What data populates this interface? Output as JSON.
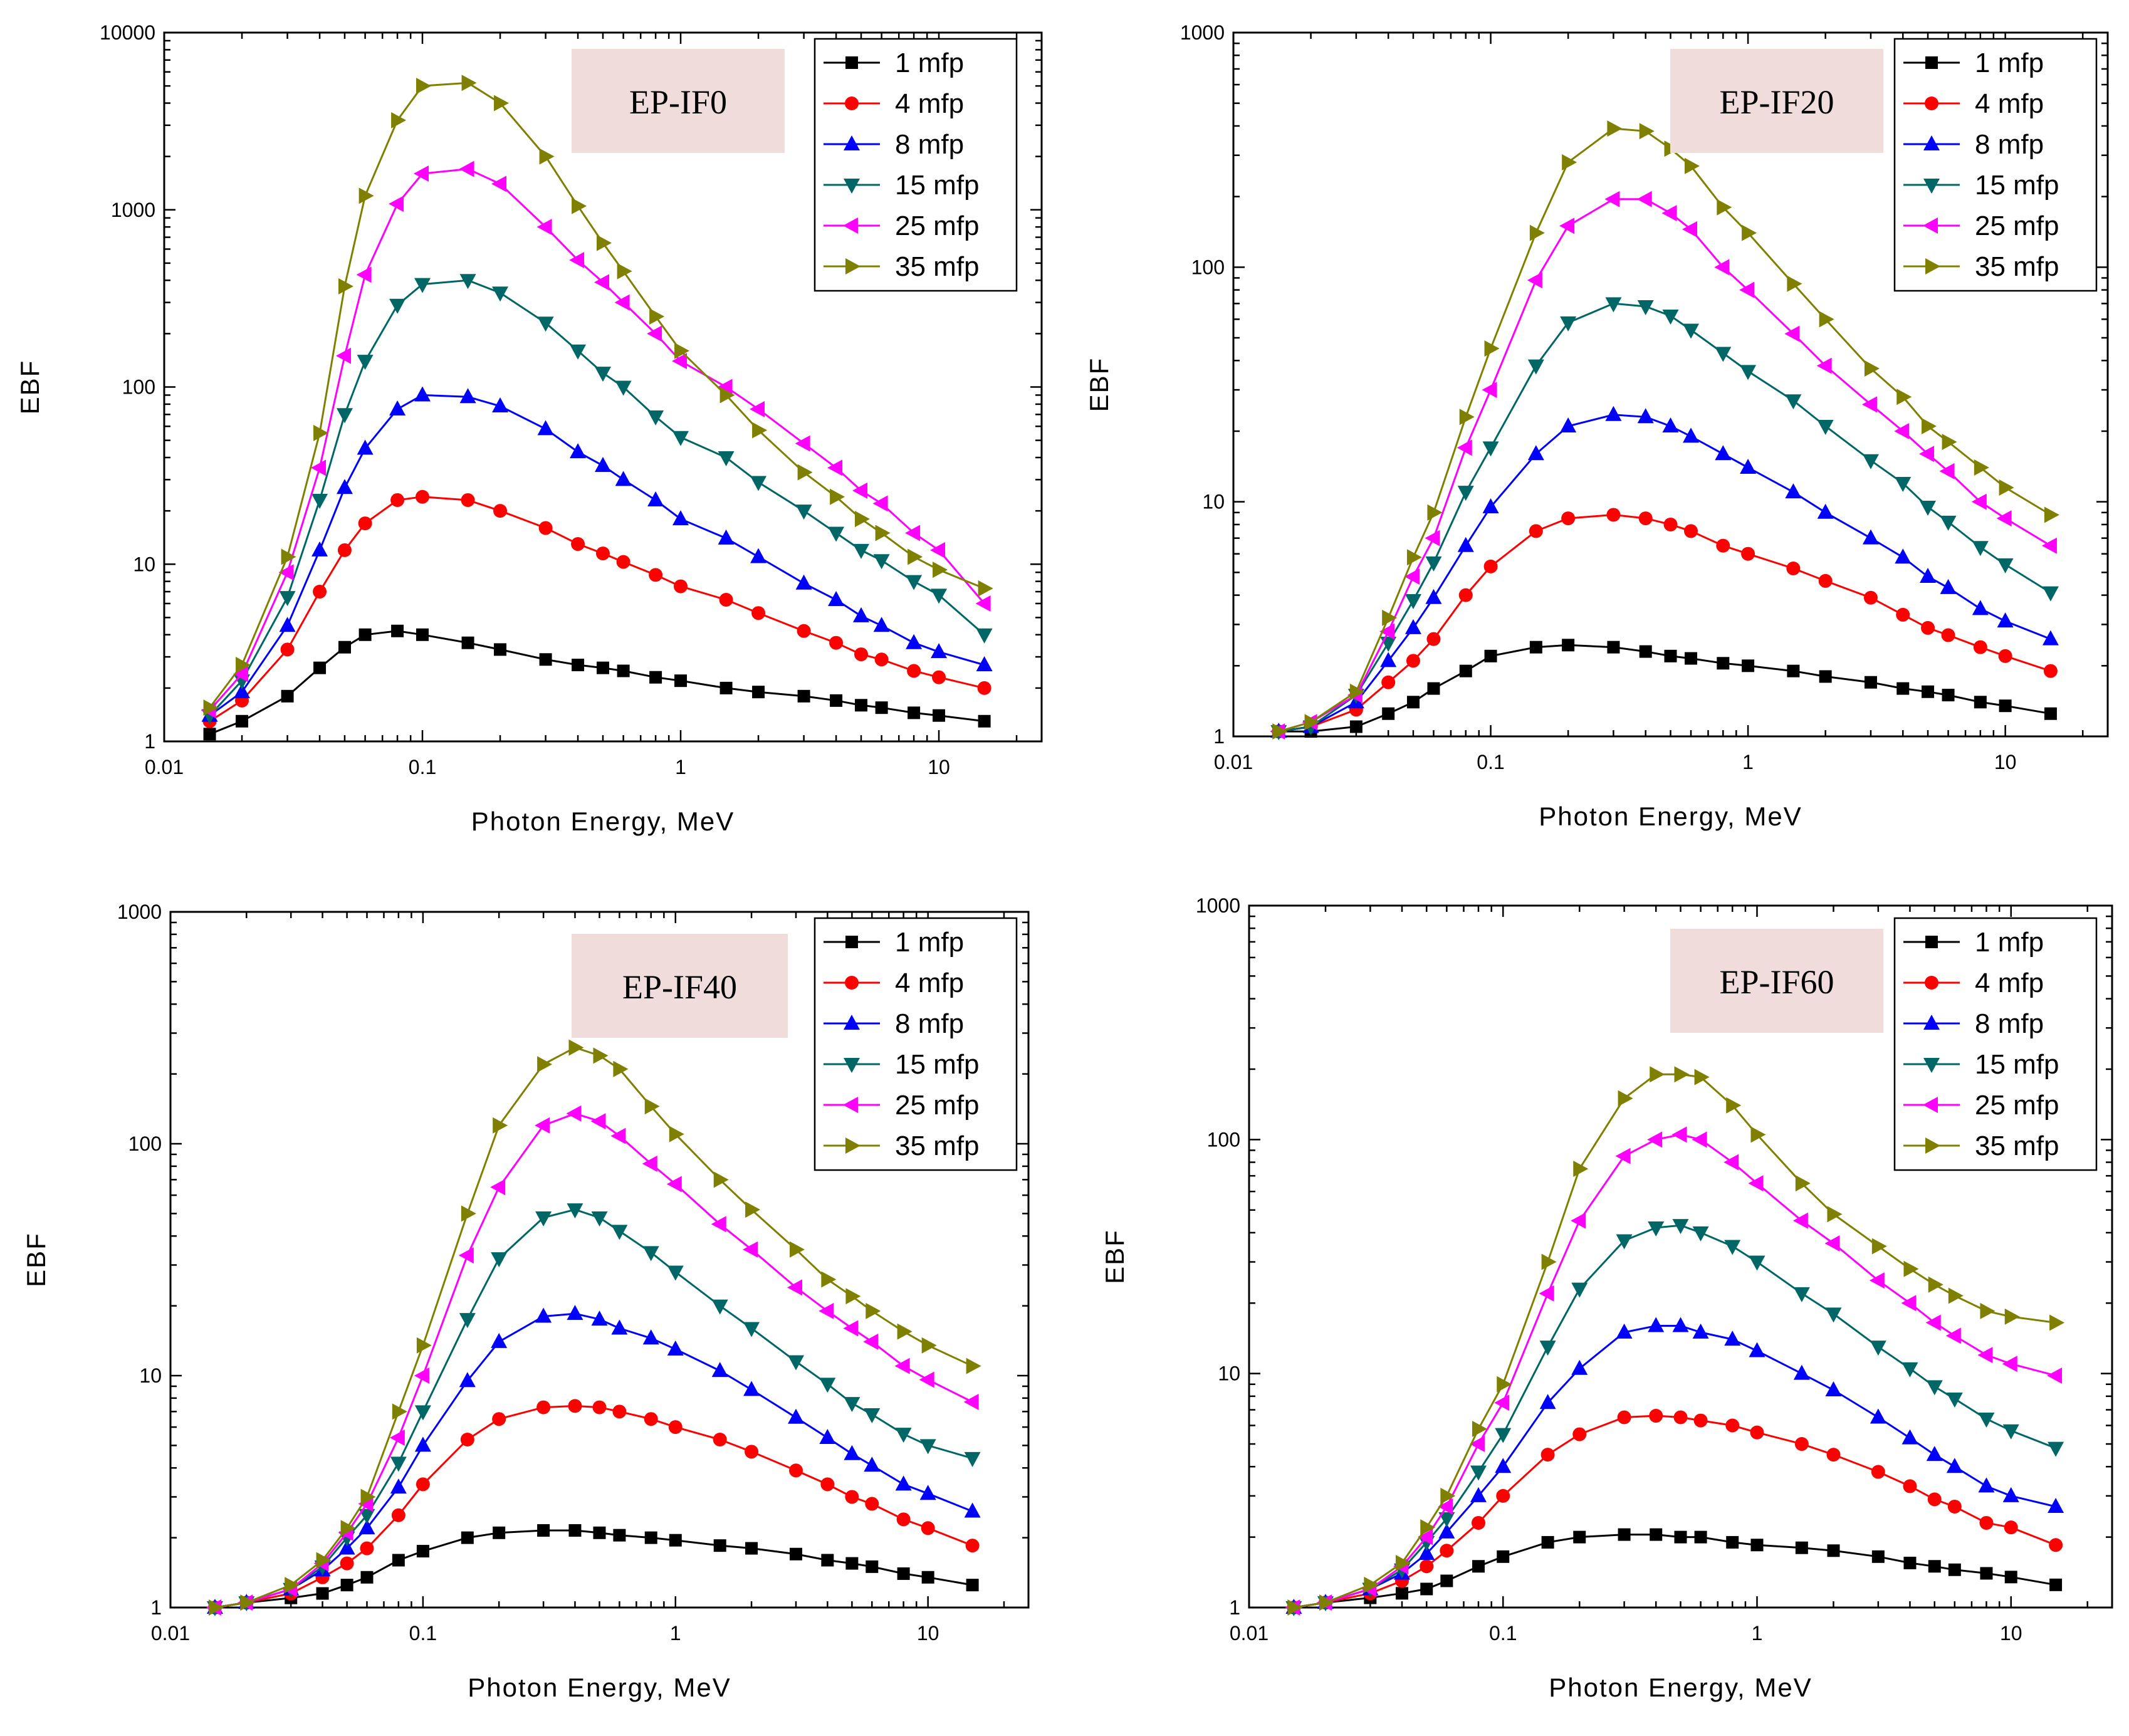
{
  "colors": {
    "series": [
      "#000000",
      "#ff0000",
      "#0000ff",
      "#006666",
      "#ff00ff",
      "#808000"
    ],
    "badge_bg": "#f1dcdc",
    "axis": "#000000"
  },
  "chart_data": [
    {
      "type": "line",
      "panel": "top-left",
      "title": "EP-IF0",
      "xlabel": "Photon Energy, MeV",
      "ylabel": "EBF",
      "xscale": "log",
      "yscale": "log",
      "xlim": [
        0.01,
        25
      ],
      "ylim": [
        1,
        10000
      ],
      "xticks": [
        "0.01",
        "0.1",
        "1",
        "10"
      ],
      "yticks": [
        "1",
        "10",
        "100",
        "1000",
        "10000"
      ],
      "legend_position": "top-right",
      "x": [
        0.015,
        0.02,
        0.03,
        0.04,
        0.05,
        0.06,
        0.08,
        0.1,
        0.15,
        0.2,
        0.3,
        0.4,
        0.5,
        0.6,
        0.8,
        1,
        1.5,
        2,
        3,
        4,
        5,
        6,
        8,
        10,
        15
      ],
      "series": [
        {
          "name": "1 mfp",
          "marker": "square",
          "values": [
            1.1,
            1.3,
            1.8,
            2.6,
            3.4,
            4.0,
            4.2,
            4.0,
            3.6,
            3.3,
            2.9,
            2.7,
            2.6,
            2.5,
            2.3,
            2.2,
            2.0,
            1.9,
            1.8,
            1.7,
            1.6,
            1.55,
            1.45,
            1.4,
            1.3
          ]
        },
        {
          "name": "4 mfp",
          "marker": "circle",
          "values": [
            1.3,
            1.7,
            3.3,
            7,
            12,
            17,
            23,
            24,
            23,
            20,
            16,
            13,
            11.5,
            10.3,
            8.7,
            7.5,
            6.3,
            5.3,
            4.2,
            3.6,
            3.1,
            2.9,
            2.5,
            2.3,
            2.0
          ]
        },
        {
          "name": "8 mfp",
          "marker": "triangle-up",
          "values": [
            1.4,
            1.9,
            4.5,
            12,
            27,
            45,
            75,
            90,
            88,
            78,
            58,
            43,
            36,
            30,
            23,
            18,
            14,
            11,
            7.8,
            6.3,
            5.1,
            4.5,
            3.6,
            3.2,
            2.7
          ]
        },
        {
          "name": "15 mfp",
          "marker": "triangle-down",
          "values": [
            1.4,
            2.2,
            6.5,
            23,
            70,
            140,
            290,
            380,
            400,
            340,
            230,
            160,
            120,
            100,
            68,
            52,
            40,
            29,
            20,
            15,
            12,
            10.5,
            8,
            6.7,
            4
          ]
        },
        {
          "name": "25 mfp",
          "marker": "triangle-left",
          "values": [
            1.5,
            2.4,
            9,
            35,
            150,
            430,
            1080,
            1600,
            1700,
            1400,
            800,
            520,
            390,
            300,
            200,
            140,
            100,
            75,
            48,
            35,
            26,
            22,
            15,
            12,
            6
          ]
        },
        {
          "name": "35 mfp",
          "marker": "triangle-right",
          "values": [
            1.55,
            2.7,
            11,
            55,
            370,
            1200,
            3200,
            5000,
            5200,
            4000,
            2000,
            1050,
            650,
            450,
            250,
            160,
            90,
            57,
            33,
            24,
            18,
            15,
            11,
            9.3,
            7.3
          ]
        }
      ]
    },
    {
      "type": "line",
      "panel": "top-right",
      "title": "EP-IF20",
      "xlabel": "Photon Energy, MeV",
      "ylabel": "EBF",
      "xscale": "log",
      "yscale": "log",
      "xlim": [
        0.01,
        25
      ],
      "ylim": [
        1,
        1000
      ],
      "xticks": [
        "0.01",
        "0.1",
        "1",
        "10"
      ],
      "yticks": [
        "1",
        "10",
        "100",
        "1000"
      ],
      "legend_position": "top-right",
      "x": [
        0.015,
        0.02,
        0.03,
        0.04,
        0.05,
        0.06,
        0.08,
        0.1,
        0.15,
        0.2,
        0.3,
        0.4,
        0.5,
        0.6,
        0.8,
        1,
        1.5,
        2,
        3,
        4,
        5,
        6,
        8,
        10,
        15
      ],
      "series": [
        {
          "name": "1 mfp",
          "marker": "square",
          "values": [
            1.05,
            1.05,
            1.1,
            1.25,
            1.4,
            1.6,
            1.9,
            2.2,
            2.4,
            2.45,
            2.4,
            2.3,
            2.2,
            2.15,
            2.05,
            2.0,
            1.9,
            1.8,
            1.7,
            1.6,
            1.55,
            1.5,
            1.4,
            1.35,
            1.25
          ]
        },
        {
          "name": "4 mfp",
          "marker": "circle",
          "values": [
            1.05,
            1.1,
            1.3,
            1.7,
            2.1,
            2.6,
            4.0,
            5.3,
            7.5,
            8.5,
            8.8,
            8.5,
            8.0,
            7.5,
            6.5,
            6.0,
            5.2,
            4.6,
            3.9,
            3.3,
            2.9,
            2.7,
            2.4,
            2.2,
            1.9
          ]
        },
        {
          "name": "8 mfp",
          "marker": "triangle-up",
          "values": [
            1.05,
            1.1,
            1.4,
            2.1,
            2.9,
            3.9,
            6.5,
            9.5,
            16,
            21,
            23.5,
            23,
            21,
            19,
            16,
            14,
            11,
            9,
            7,
            5.8,
            4.8,
            4.3,
            3.5,
            3.1,
            2.6
          ]
        },
        {
          "name": "15 mfp",
          "marker": "triangle-down",
          "values": [
            1.05,
            1.1,
            1.5,
            2.5,
            3.8,
            5.5,
            11,
            17,
            38,
            58,
            70,
            68,
            62,
            54,
            43,
            36,
            27,
            21,
            15,
            12,
            9.5,
            8.2,
            6.4,
            5.4,
            4.1
          ]
        },
        {
          "name": "25 mfp",
          "marker": "triangle-left",
          "values": [
            1.05,
            1.15,
            1.5,
            2.8,
            4.8,
            7,
            17,
            30,
            88,
            150,
            195,
            195,
            170,
            145,
            100,
            80,
            52,
            38,
            26,
            20,
            16,
            13.5,
            10,
            8.5,
            6.5
          ]
        },
        {
          "name": "35 mfp",
          "marker": "triangle-right",
          "values": [
            1.05,
            1.15,
            1.55,
            3.2,
            5.8,
            9,
            23,
            45,
            140,
            280,
            390,
            380,
            320,
            270,
            180,
            140,
            85,
            60,
            37,
            28,
            21,
            18,
            14,
            11.5,
            8.8
          ]
        }
      ]
    },
    {
      "type": "line",
      "panel": "bottom-left",
      "title": "EP-IF40",
      "xlabel": "Photon Energy, MeV",
      "ylabel": "EBF",
      "xscale": "log",
      "yscale": "log",
      "xlim": [
        0.01,
        25
      ],
      "ylim": [
        1,
        1000
      ],
      "xticks": [
        "0.01",
        "0.1",
        "1",
        "10"
      ],
      "yticks": [
        "1",
        "10",
        "100",
        "1000"
      ],
      "legend_position": "top-right",
      "x": [
        0.015,
        0.02,
        0.03,
        0.04,
        0.05,
        0.06,
        0.08,
        0.1,
        0.15,
        0.2,
        0.3,
        0.4,
        0.5,
        0.6,
        0.8,
        1,
        1.5,
        2,
        3,
        4,
        5,
        6,
        8,
        10,
        15
      ],
      "series": [
        {
          "name": "1 mfp",
          "marker": "square",
          "values": [
            1.0,
            1.05,
            1.1,
            1.15,
            1.25,
            1.35,
            1.6,
            1.75,
            2.0,
            2.1,
            2.15,
            2.15,
            2.1,
            2.05,
            2.0,
            1.95,
            1.85,
            1.8,
            1.7,
            1.6,
            1.55,
            1.5,
            1.4,
            1.35,
            1.25
          ]
        },
        {
          "name": "4 mfp",
          "marker": "circle",
          "values": [
            1.0,
            1.05,
            1.15,
            1.35,
            1.55,
            1.8,
            2.5,
            3.4,
            5.3,
            6.5,
            7.3,
            7.4,
            7.3,
            7.0,
            6.5,
            6.0,
            5.3,
            4.7,
            3.9,
            3.4,
            3.0,
            2.8,
            2.4,
            2.2,
            1.85
          ]
        },
        {
          "name": "8 mfp",
          "marker": "triangle-up",
          "values": [
            1.0,
            1.05,
            1.2,
            1.45,
            1.8,
            2.2,
            3.3,
            5.0,
            9.5,
            14,
            18,
            18.5,
            17.5,
            16,
            14.5,
            13,
            10.5,
            8.7,
            6.6,
            5.4,
            4.6,
            4.1,
            3.4,
            3.1,
            2.6
          ]
        },
        {
          "name": "15 mfp",
          "marker": "triangle-down",
          "values": [
            1.0,
            1.05,
            1.2,
            1.5,
            2.0,
            2.5,
            4.2,
            7,
            17.5,
            32,
            48,
            52,
            48,
            42,
            34,
            28,
            20,
            16,
            11.5,
            9.2,
            7.6,
            6.8,
            5.6,
            5.0,
            4.4
          ]
        },
        {
          "name": "25 mfp",
          "marker": "triangle-left",
          "values": [
            1.0,
            1.05,
            1.2,
            1.55,
            2.1,
            2.8,
            5.4,
            10,
            33,
            65,
            120,
            135,
            125,
            108,
            82,
            67,
            45,
            35,
            24,
            19,
            16,
            14,
            11,
            9.6,
            7.7
          ]
        },
        {
          "name": "35 mfp",
          "marker": "triangle-right",
          "values": [
            1.0,
            1.05,
            1.25,
            1.6,
            2.2,
            3.0,
            7,
            13.5,
            50,
            120,
            220,
            260,
            240,
            210,
            145,
            110,
            70,
            52,
            35,
            26,
            22,
            19,
            15.5,
            13.5,
            11
          ]
        }
      ]
    },
    {
      "type": "line",
      "panel": "bottom-right",
      "title": "EP-IF60",
      "xlabel": "Photon Energy, MeV",
      "ylabel": "EBF",
      "xscale": "log",
      "yscale": "log",
      "xlim": [
        0.01,
        25
      ],
      "ylim": [
        1,
        1000
      ],
      "xticks": [
        "0.01",
        "0.1",
        "1",
        "10"
      ],
      "yticks": [
        "1",
        "10",
        "100",
        "1000"
      ],
      "legend_position": "top-right",
      "x": [
        0.015,
        0.02,
        0.03,
        0.04,
        0.05,
        0.06,
        0.08,
        0.1,
        0.15,
        0.2,
        0.3,
        0.4,
        0.5,
        0.6,
        0.8,
        1,
        1.5,
        2,
        3,
        4,
        5,
        6,
        8,
        10,
        15
      ],
      "series": [
        {
          "name": "1 mfp",
          "marker": "square",
          "values": [
            1.0,
            1.05,
            1.1,
            1.15,
            1.2,
            1.3,
            1.5,
            1.65,
            1.9,
            2.0,
            2.05,
            2.05,
            2.0,
            2.0,
            1.9,
            1.85,
            1.8,
            1.75,
            1.65,
            1.55,
            1.5,
            1.45,
            1.4,
            1.35,
            1.25
          ]
        },
        {
          "name": "4 mfp",
          "marker": "circle",
          "values": [
            1.0,
            1.05,
            1.15,
            1.3,
            1.5,
            1.75,
            2.3,
            3.0,
            4.5,
            5.5,
            6.5,
            6.6,
            6.5,
            6.3,
            6.0,
            5.6,
            5.0,
            4.5,
            3.8,
            3.3,
            2.9,
            2.7,
            2.3,
            2.2,
            1.85
          ]
        },
        {
          "name": "8 mfp",
          "marker": "triangle-up",
          "values": [
            1.0,
            1.05,
            1.2,
            1.4,
            1.7,
            2.1,
            3.0,
            4.0,
            7.5,
            10.5,
            15,
            16,
            16,
            15,
            14,
            12.5,
            10,
            8.5,
            6.5,
            5.3,
            4.5,
            4.0,
            3.3,
            3.0,
            2.7
          ]
        },
        {
          "name": "15 mfp",
          "marker": "triangle-down",
          "values": [
            1.0,
            1.05,
            1.2,
            1.45,
            1.9,
            2.4,
            3.8,
            5.5,
            13,
            23,
            37,
            42,
            43,
            40,
            35,
            30,
            22,
            18,
            13,
            10.5,
            8.8,
            7.8,
            6.4,
            5.7,
            4.8
          ]
        },
        {
          "name": "25 mfp",
          "marker": "triangle-left",
          "values": [
            1.0,
            1.05,
            1.2,
            1.5,
            2.0,
            2.7,
            5.0,
            7.5,
            22,
            45,
            85,
            100,
            105,
            100,
            80,
            65,
            45,
            36,
            25,
            20,
            16.5,
            14.5,
            12,
            11,
            9.8
          ]
        },
        {
          "name": "35 mfp",
          "marker": "triangle-right",
          "values": [
            1.0,
            1.05,
            1.25,
            1.55,
            2.2,
            3.0,
            5.8,
            9.0,
            30,
            75,
            150,
            190,
            190,
            185,
            140,
            105,
            65,
            48,
            35,
            28,
            24,
            21.5,
            18.5,
            17.5,
            16.5
          ]
        }
      ]
    }
  ]
}
